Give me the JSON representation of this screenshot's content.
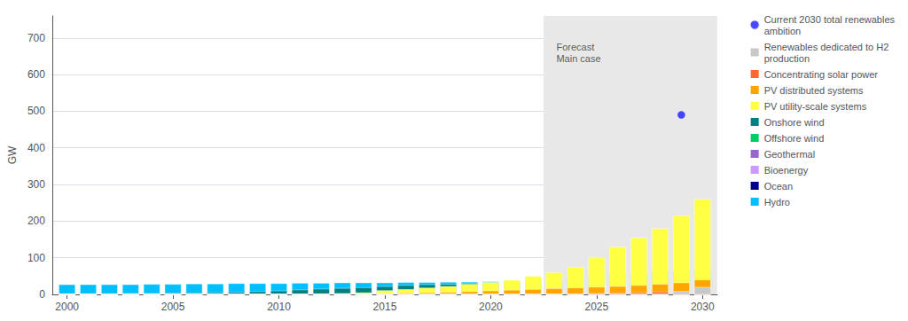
{
  "chart_data": {
    "type": "bar",
    "stacked": true,
    "ylabel": "GW",
    "x": [
      2000,
      2001,
      2002,
      2003,
      2004,
      2005,
      2006,
      2007,
      2008,
      2009,
      2010,
      2011,
      2012,
      2013,
      2014,
      2015,
      2016,
      2017,
      2018,
      2019,
      2020,
      2021,
      2022,
      2023,
      2024,
      2025,
      2026,
      2027,
      2028,
      2029,
      2030
    ],
    "xlim": [
      1999.3,
      2030.7
    ],
    "xticks": [
      2000,
      2005,
      2010,
      2015,
      2020,
      2025,
      2030
    ],
    "ylim": [
      0,
      760
    ],
    "yticks": [
      0,
      100,
      200,
      300,
      400,
      500,
      600,
      700
    ],
    "grid": true,
    "legend": "right",
    "forecast_span": [
      2022.5,
      2030.69
    ],
    "forecast_color": "#e8e8e8",
    "annotations": [
      {
        "text": "Forecast\nMain case",
        "x": 2023.1,
        "y": 690
      }
    ],
    "series": [
      {
        "name": "Hydro",
        "type": "bar",
        "color": "#00bfff",
        "values": [
          27,
          27,
          27,
          27,
          28,
          28,
          29,
          29,
          30,
          30,
          30,
          31,
          31,
          32,
          32,
          32,
          33,
          33,
          34,
          34,
          35,
          35,
          36,
          36,
          37,
          38,
          39,
          40,
          42,
          44,
          46
        ]
      },
      {
        "name": "Ocean",
        "type": "bar",
        "color": "#00008b",
        "values": [
          0,
          0,
          0,
          0,
          0,
          0,
          0,
          0,
          0,
          0,
          0,
          0,
          0,
          0,
          0,
          0,
          0,
          0,
          0,
          0,
          0,
          0,
          0,
          0,
          0,
          0,
          0,
          0,
          0,
          0,
          0
        ]
      },
      {
        "name": "Bioenergy",
        "type": "bar",
        "color": "#cc99ff",
        "values": [
          0,
          0,
          0,
          0,
          0,
          1,
          1,
          1,
          1,
          1,
          1,
          1,
          2,
          2,
          2,
          2,
          2,
          3,
          3,
          3,
          4,
          4,
          5,
          5,
          6,
          7,
          8,
          9,
          10,
          11,
          12
        ]
      },
      {
        "name": "Geothermal",
        "type": "bar",
        "color": "#9966cc",
        "values": [
          0,
          0,
          0,
          0,
          0,
          0,
          0,
          0,
          0,
          0,
          0,
          0,
          0,
          0,
          0,
          0,
          0,
          0,
          0,
          0,
          0,
          0,
          0,
          0,
          0,
          0,
          0,
          0,
          0,
          0,
          0
        ]
      },
      {
        "name": "Offshore wind",
        "type": "bar",
        "color": "#00cc66",
        "values": [
          0,
          0,
          0,
          0,
          0,
          0,
          0,
          0,
          0,
          0,
          0,
          0,
          0,
          0,
          0,
          0,
          0,
          0,
          0,
          0,
          0,
          0,
          0,
          0,
          0,
          0,
          0,
          0,
          0,
          0,
          0
        ]
      },
      {
        "name": "Onshore wind",
        "type": "bar",
        "color": "#008080",
        "values": [
          2,
          2,
          2,
          3,
          3,
          4,
          4,
          5,
          6,
          8,
          10,
          13,
          15,
          17,
          19,
          22,
          25,
          27,
          28,
          30,
          32,
          35,
          38,
          42,
          46,
          50,
          54,
          58,
          62,
          66,
          70
        ]
      },
      {
        "name": "PV utility-scale systems",
        "type": "bar",
        "color": "#ffff44",
        "values": [
          0,
          0,
          0,
          0,
          0,
          0,
          0,
          0,
          0,
          0,
          0,
          1,
          2,
          3,
          5,
          11,
          14,
          18,
          22,
          28,
          33,
          39,
          50,
          60,
          75,
          100,
          130,
          155,
          180,
          215,
          260
        ]
      },
      {
        "name": "PV distributed systems",
        "type": "bar",
        "color": "#ffa500",
        "values": [
          0,
          0,
          0,
          0,
          0,
          0,
          0,
          0,
          0,
          0,
          0,
          0,
          0,
          0,
          1,
          2,
          4,
          5,
          6,
          8,
          10,
          12,
          14,
          16,
          18,
          20,
          22,
          25,
          28,
          32,
          40
        ]
      },
      {
        "name": "Concentrating solar power",
        "type": "bar",
        "color": "#ff6633",
        "values": [
          0,
          0,
          0,
          0,
          0,
          0,
          0,
          0,
          0,
          0,
          0,
          0,
          0,
          0,
          0,
          0,
          0,
          0,
          0,
          0,
          0,
          0,
          1,
          1,
          2,
          3,
          4,
          5,
          7,
          9,
          12
        ]
      },
      {
        "name": "Renewables dedicated to H2\nproduction",
        "type": "bar",
        "color": "#c8c8c8",
        "values": [
          0,
          0,
          0,
          0,
          0,
          0,
          0,
          0,
          0,
          0,
          0,
          0,
          0,
          0,
          0,
          0,
          0,
          0,
          0,
          0,
          0,
          0,
          0,
          0,
          0,
          0,
          0,
          0,
          0,
          8,
          20
        ]
      },
      {
        "name": "Current 2030 total renewables\nambition",
        "type": "scatter",
        "marker": "circle",
        "color": "#1a1aff",
        "x": [
          2029
        ],
        "values": [
          490
        ]
      }
    ]
  }
}
